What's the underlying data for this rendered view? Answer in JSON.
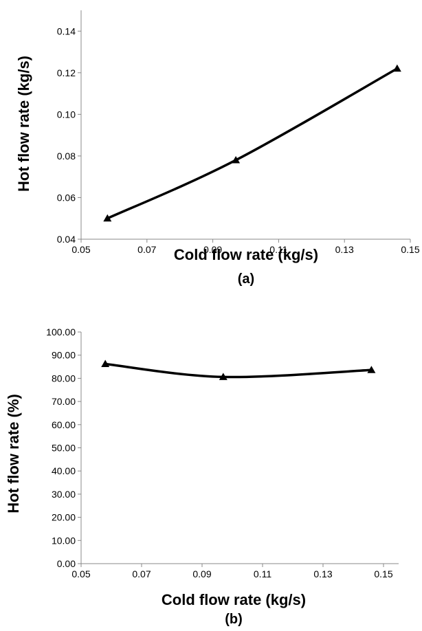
{
  "chart_data": [
    {
      "type": "line",
      "panel_label": "(a)",
      "xlabel": "Cold flow rate (kg/s)",
      "ylabel": "Hot flow rate (kg/s)",
      "xlim": [
        0.05,
        0.15
      ],
      "ylim": [
        0.04,
        0.15
      ],
      "xticks": [
        "0.05",
        "0.07",
        "0.09",
        "0.11",
        "0.13",
        "0.15"
      ],
      "yticks": [
        "0.04",
        "0.06",
        "0.08",
        "0.10",
        "0.12",
        "0.14"
      ],
      "grid": false,
      "marker": "triangle",
      "line_color": "#000000",
      "series": [
        {
          "x": [
            0.058,
            0.097,
            0.146
          ],
          "y": [
            0.05,
            0.078,
            0.122
          ]
        }
      ]
    },
    {
      "type": "line",
      "panel_label": "(b)",
      "xlabel": "Cold flow rate (kg/s)",
      "ylabel": "Hot flow rate (%)",
      "xlim": [
        0.05,
        0.155
      ],
      "ylim": [
        0,
        100
      ],
      "xticks": [
        "0.05",
        "0.07",
        "0.09",
        "0.11",
        "0.13",
        "0.15"
      ],
      "yticks": [
        "0.00",
        "10.00",
        "20.00",
        "30.00",
        "40.00",
        "50.00",
        "60.00",
        "70.00",
        "80.00",
        "90.00",
        "100.00"
      ],
      "grid": false,
      "marker": "triangle",
      "line_color": "#000000",
      "series": [
        {
          "x": [
            0.058,
            0.097,
            0.146
          ],
          "y": [
            86.2,
            80.6,
            83.6
          ]
        }
      ]
    }
  ]
}
